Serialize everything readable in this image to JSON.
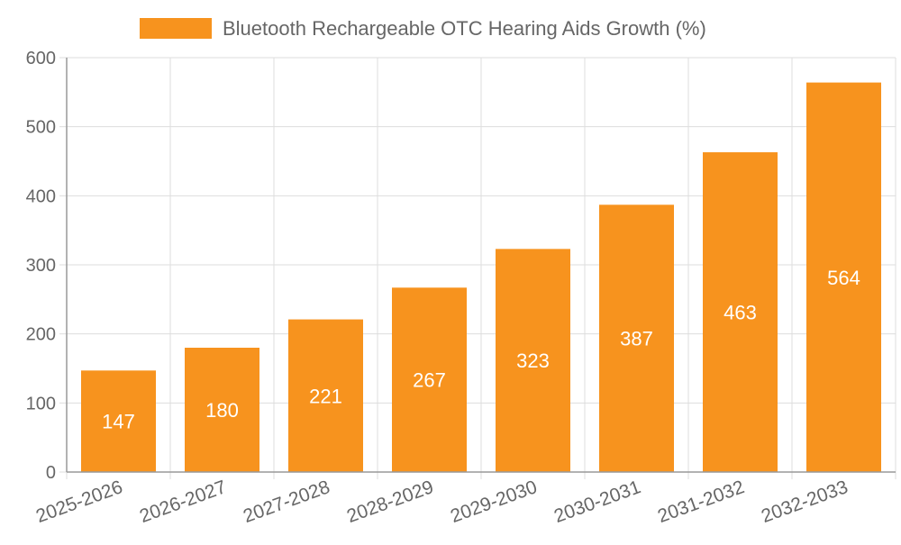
{
  "chart_data": {
    "type": "bar",
    "title": "",
    "xlabel": "",
    "ylabel": "",
    "legend": {
      "position": "top",
      "label": "Bluetooth Rechargeable OTC Hearing Aids Growth (%)"
    },
    "categories": [
      "2025-2026",
      "2026-2027",
      "2027-2028",
      "2028-2029",
      "2029-2030",
      "2030-2031",
      "2031-2032",
      "2032-2033"
    ],
    "series": [
      {
        "name": "Bluetooth Rechargeable OTC Hearing Aids Growth (%)",
        "values": [
          147,
          180,
          221,
          267,
          323,
          387,
          463,
          564
        ],
        "color": "#f7931e"
      }
    ],
    "data_labels": [
      "147",
      "180",
      "221",
      "267",
      "323",
      "387",
      "463",
      "564"
    ],
    "ylim": [
      0,
      600
    ],
    "yticks": [
      0,
      100,
      200,
      300,
      400,
      500,
      600
    ],
    "ytick_labels": [
      "0",
      "100",
      "200",
      "300",
      "400",
      "500",
      "600"
    ],
    "grid": true,
    "colors": {
      "bar": "#f7931e",
      "grid": "#dddddd",
      "axis": "#999999",
      "tick_text": "#666666",
      "data_label": "#ffffff"
    }
  }
}
